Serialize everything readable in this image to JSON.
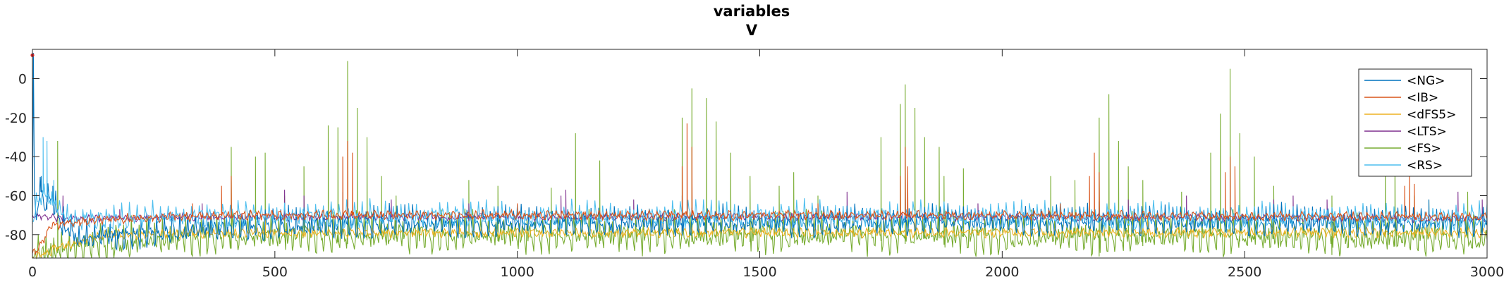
{
  "chart_data": {
    "type": "line",
    "title": [
      "variables",
      "V"
    ],
    "xlabel": "",
    "ylabel": "",
    "xlim": [
      0,
      3000
    ],
    "ylim": [
      -92,
      15
    ],
    "xticks": [
      0,
      500,
      1000,
      1500,
      2000,
      2500,
      3000
    ],
    "yticks": [
      -80,
      -60,
      -40,
      -20,
      0
    ],
    "grid": false,
    "legend_position": "top-right",
    "series": [
      {
        "name": "<NG>",
        "color": "#0072BD",
        "baseline": -74,
        "noise": 3,
        "points": [
          [
            0,
            -80
          ],
          [
            2,
            12
          ],
          [
            4,
            -60
          ],
          [
            8,
            -70
          ],
          [
            15,
            -55
          ],
          [
            25,
            -65
          ],
          [
            40,
            -60
          ],
          [
            60,
            -75
          ],
          [
            100,
            -82
          ],
          [
            200,
            -80
          ],
          [
            400,
            -76
          ],
          [
            800,
            -74
          ],
          [
            1500,
            -74
          ],
          [
            2200,
            -73
          ],
          [
            3000,
            -74
          ]
        ],
        "spikes": [
          [
            18,
            -50
          ],
          [
            30,
            -52
          ],
          [
            42,
            -55
          ],
          [
            650,
            -62
          ],
          [
            1340,
            -60
          ],
          [
            1800,
            -62
          ],
          [
            2200,
            -63
          ],
          [
            2470,
            -62
          ],
          [
            2880,
            -62
          ]
        ]
      },
      {
        "name": "<IB>",
        "color": "#D95319",
        "baseline": -71,
        "noise": 2,
        "points": [
          [
            0,
            -90
          ],
          [
            10,
            -88
          ],
          [
            40,
            -75
          ],
          [
            150,
            -72
          ],
          [
            400,
            -70
          ],
          [
            1000,
            -70
          ],
          [
            2000,
            -70
          ],
          [
            3000,
            -71
          ]
        ],
        "spikes": [
          [
            330,
            -64
          ],
          [
            390,
            -55
          ],
          [
            410,
            -50
          ],
          [
            640,
            -40
          ],
          [
            650,
            -32
          ],
          [
            660,
            -38
          ],
          [
            1340,
            -45
          ],
          [
            1350,
            -23
          ],
          [
            1360,
            -35
          ],
          [
            1790,
            -50
          ],
          [
            1800,
            -35
          ],
          [
            1805,
            -45
          ],
          [
            2180,
            -50
          ],
          [
            2190,
            -38
          ],
          [
            2200,
            -48
          ],
          [
            2460,
            -48
          ],
          [
            2470,
            -40
          ],
          [
            2480,
            -45
          ],
          [
            2830,
            -55
          ],
          [
            2840,
            -48
          ],
          [
            2850,
            -54
          ],
          [
            1000,
            -64
          ],
          [
            1620,
            -64
          ],
          [
            2120,
            -64
          ]
        ]
      },
      {
        "name": "<dFS5>",
        "color": "#EDB120",
        "baseline": -79,
        "noise": 2,
        "points": [
          [
            0,
            -92
          ],
          [
            60,
            -86
          ],
          [
            150,
            -80
          ],
          [
            500,
            -79
          ],
          [
            1500,
            -79
          ],
          [
            3000,
            -79
          ]
        ],
        "spikes": [
          [
            480,
            -68
          ],
          [
            880,
            -70
          ],
          [
            1300,
            -69
          ],
          [
            1820,
            -70
          ],
          [
            2300,
            -69
          ],
          [
            2700,
            -70
          ]
        ]
      },
      {
        "name": "<LTS>",
        "color": "#7E2F8E",
        "baseline": -72,
        "noise": 1.5,
        "points": [
          [
            0,
            -70
          ],
          [
            60,
            -72
          ],
          [
            300,
            -71
          ],
          [
            1000,
            -71
          ],
          [
            2000,
            -71
          ],
          [
            3000,
            -72
          ]
        ],
        "spikes": [
          [
            63,
            -60
          ],
          [
            180,
            -67
          ],
          [
            350,
            -64
          ],
          [
            520,
            -57
          ],
          [
            560,
            -60
          ],
          [
            740,
            -62
          ],
          [
            900,
            -64
          ],
          [
            1090,
            -60
          ],
          [
            1100,
            -57
          ],
          [
            1240,
            -62
          ],
          [
            1680,
            -58
          ],
          [
            1950,
            -64
          ],
          [
            2260,
            -62
          ],
          [
            2380,
            -60
          ],
          [
            2560,
            -62
          ],
          [
            2600,
            -60
          ],
          [
            2670,
            -62
          ],
          [
            2940,
            -58
          ],
          [
            2990,
            -62
          ]
        ]
      },
      {
        "name": "<FS>",
        "color": "#77AC30",
        "baseline": -80,
        "noise": 4,
        "points": [
          [
            0,
            -90
          ],
          [
            60,
            -88
          ],
          [
            120,
            -85
          ],
          [
            250,
            -82
          ],
          [
            400,
            -80
          ],
          [
            1500,
            -80
          ],
          [
            3000,
            -81
          ]
        ],
        "spikes": [
          [
            52,
            -32
          ],
          [
            410,
            -35
          ],
          [
            460,
            -40
          ],
          [
            480,
            -38
          ],
          [
            520,
            -60
          ],
          [
            560,
            -45
          ],
          [
            610,
            -24
          ],
          [
            630,
            -25
          ],
          [
            650,
            9
          ],
          [
            670,
            -15
          ],
          [
            690,
            -30
          ],
          [
            720,
            -50
          ],
          [
            750,
            -60
          ],
          [
            900,
            -52
          ],
          [
            960,
            -55
          ],
          [
            1070,
            -56
          ],
          [
            1120,
            -28
          ],
          [
            1170,
            -42
          ],
          [
            1340,
            -20
          ],
          [
            1360,
            -5
          ],
          [
            1390,
            -10
          ],
          [
            1410,
            -22
          ],
          [
            1440,
            -38
          ],
          [
            1480,
            -50
          ],
          [
            1540,
            -55
          ],
          [
            1570,
            -48
          ],
          [
            1620,
            -60
          ],
          [
            1750,
            -30
          ],
          [
            1790,
            -13
          ],
          [
            1800,
            -3
          ],
          [
            1820,
            -15
          ],
          [
            1840,
            -30
          ],
          [
            1870,
            -35
          ],
          [
            1880,
            -50
          ],
          [
            1920,
            -46
          ],
          [
            2100,
            -50
          ],
          [
            2150,
            -52
          ],
          [
            2200,
            -20
          ],
          [
            2220,
            -8
          ],
          [
            2240,
            -32
          ],
          [
            2260,
            -45
          ],
          [
            2290,
            -52
          ],
          [
            2370,
            -58
          ],
          [
            2430,
            -38
          ],
          [
            2450,
            -18
          ],
          [
            2470,
            5
          ],
          [
            2490,
            -28
          ],
          [
            2520,
            -40
          ],
          [
            2560,
            -55
          ],
          [
            2680,
            -60
          ],
          [
            2790,
            -45
          ],
          [
            2810,
            -38
          ],
          [
            2850,
            -60
          ],
          [
            2880,
            -62
          ],
          [
            2960,
            -58
          ]
        ]
      },
      {
        "name": "<RS>",
        "color": "#4DBEEE",
        "baseline": -71,
        "noise": 2.5,
        "points": [
          [
            0,
            -72
          ],
          [
            20,
            -58
          ],
          [
            40,
            -62
          ],
          [
            80,
            -72
          ],
          [
            300,
            -70
          ],
          [
            1500,
            -70
          ],
          [
            3000,
            -71
          ]
        ],
        "spikes": [
          [
            22,
            -30
          ],
          [
            30,
            -32
          ],
          [
            44,
            -52
          ],
          [
            640,
            -58
          ],
          [
            1800,
            -58
          ],
          [
            2470,
            -58
          ]
        ]
      }
    ]
  }
}
